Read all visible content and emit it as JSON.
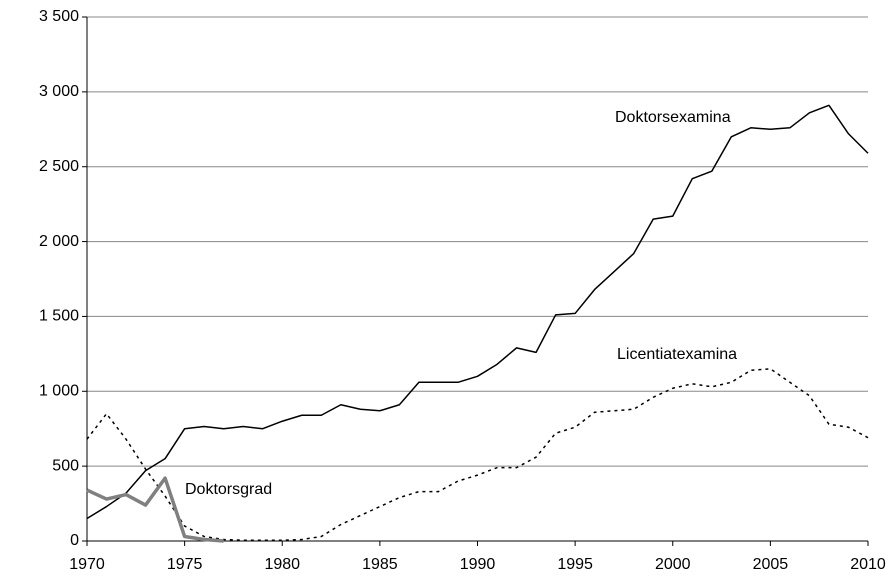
{
  "chart_data": {
    "type": "line",
    "x": [
      1970,
      1971,
      1972,
      1973,
      1974,
      1975,
      1976,
      1977,
      1978,
      1979,
      1980,
      1981,
      1982,
      1983,
      1984,
      1985,
      1986,
      1987,
      1988,
      1989,
      1990,
      1991,
      1992,
      1993,
      1994,
      1995,
      1996,
      1997,
      1998,
      1999,
      2000,
      2001,
      2002,
      2003,
      2004,
      2005,
      2006,
      2007,
      2008,
      2009,
      2010
    ],
    "series": [
      {
        "name": "Doktorsexamina",
        "color": "#000000",
        "line_style": "solid",
        "line_width": 1.5,
        "values": [
          150,
          230,
          320,
          470,
          550,
          750,
          765,
          750,
          765,
          750,
          800,
          840,
          840,
          910,
          880,
          870,
          910,
          1060,
          1060,
          1060,
          1100,
          1180,
          1290,
          1260,
          1510,
          1520,
          1680,
          1800,
          1920,
          2150,
          2170,
          2420,
          2470,
          2700,
          2760,
          2750,
          2760,
          2860,
          2910,
          2720,
          2590
        ]
      },
      {
        "name": "Licentiatexamina",
        "color": "#000000",
        "line_style": "dotted",
        "line_width": 1.5,
        "values": [
          680,
          850,
          680,
          480,
          300,
          100,
          30,
          10,
          5,
          5,
          5,
          10,
          30,
          110,
          170,
          230,
          290,
          330,
          330,
          400,
          440,
          490,
          490,
          560,
          720,
          760,
          860,
          870,
          880,
          960,
          1020,
          1050,
          1030,
          1060,
          1140,
          1150,
          1060,
          970,
          780,
          760,
          690
        ]
      },
      {
        "name": "Doktorsgrad",
        "color": "#808080",
        "line_style": "solid",
        "line_width": 3.5,
        "values": [
          340,
          280,
          310,
          240,
          420,
          30,
          10,
          0,
          null,
          null,
          null,
          null,
          null,
          null,
          null,
          null,
          null,
          null,
          null,
          null,
          null,
          null,
          null,
          null,
          null,
          null,
          null,
          null,
          null,
          null,
          null,
          null,
          null,
          null,
          null,
          null,
          null,
          null,
          null,
          null,
          null
        ]
      }
    ],
    "xlim": [
      1970,
      2010
    ],
    "xticks": [
      1970,
      1975,
      1980,
      1985,
      1990,
      1995,
      2000,
      2005,
      2010
    ],
    "ylim": [
      0,
      3500
    ],
    "yticks": [
      0,
      500,
      {
        "value": 1000,
        "label": "1 000"
      },
      {
        "value": 1500,
        "label": "1 500"
      },
      {
        "value": 2000,
        "label": "2 000"
      },
      {
        "value": 2500,
        "label": "2 500"
      },
      {
        "value": 3000,
        "label": "3 000"
      },
      {
        "value": 3500,
        "label": "3 500"
      }
    ],
    "grid": true,
    "legend": "none"
  }
}
